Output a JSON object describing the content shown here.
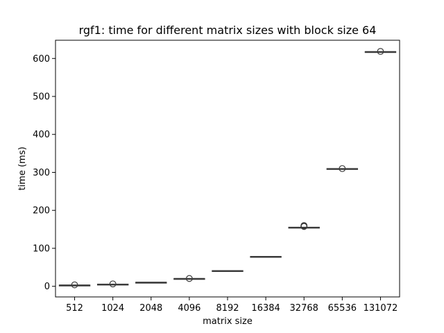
{
  "chart_data": {
    "type": "box",
    "title": "rgf1: time for different matrix sizes with block size 64",
    "xlabel": "matrix size",
    "ylabel": "time (ms)",
    "ylim": [
      -28,
      648
    ],
    "yticks": [
      0,
      100,
      200,
      300,
      400,
      500,
      600
    ],
    "grid": false,
    "legend": "none",
    "box_color": "#3a3a3a",
    "categories": [
      "512",
      "1024",
      "2048",
      "4096",
      "8192",
      "16384",
      "32768",
      "65536",
      "131072"
    ],
    "boxes": [
      {
        "category": "512",
        "q1": 2.8,
        "median": 3.0,
        "q3": 3.2,
        "whisker_low": 2.5,
        "whisker_high": 3.5,
        "outliers": [
          3.8
        ]
      },
      {
        "category": "1024",
        "q1": 5.0,
        "median": 5.3,
        "q3": 5.6,
        "whisker_low": 4.7,
        "whisker_high": 5.9,
        "outliers": [
          6.3
        ]
      },
      {
        "category": "2048",
        "q1": 10.0,
        "median": 10.3,
        "q3": 10.6,
        "whisker_low": 9.7,
        "whisker_high": 10.9,
        "outliers": []
      },
      {
        "category": "4096",
        "q1": 19.5,
        "median": 20.0,
        "q3": 20.5,
        "whisker_low": 19.0,
        "whisker_high": 21.0,
        "outliers": [
          20.5
        ]
      },
      {
        "category": "8192",
        "q1": 40.0,
        "median": 40.6,
        "q3": 41.2,
        "whisker_low": 39.5,
        "whisker_high": 41.8,
        "outliers": []
      },
      {
        "category": "16384",
        "q1": 77.0,
        "median": 77.8,
        "q3": 78.6,
        "whisker_low": 76.3,
        "whisker_high": 79.3,
        "outliers": []
      },
      {
        "category": "32768",
        "q1": 153.5,
        "median": 154.5,
        "q3": 155.5,
        "whisker_low": 152.5,
        "whisker_high": 156.5,
        "outliers": [
          160.0,
          159.0,
          158.0,
          157.5
        ]
      },
      {
        "category": "65536",
        "q1": 309.0,
        "median": 309.5,
        "q3": 310.0,
        "whisker_low": 308.5,
        "whisker_high": 310.5,
        "outliers": [
          310.0
        ]
      },
      {
        "category": "131072",
        "q1": 617.0,
        "median": 617.5,
        "q3": 618.0,
        "whisker_low": 616.5,
        "whisker_high": 618.5,
        "outliers": [
          618.5
        ]
      }
    ]
  }
}
